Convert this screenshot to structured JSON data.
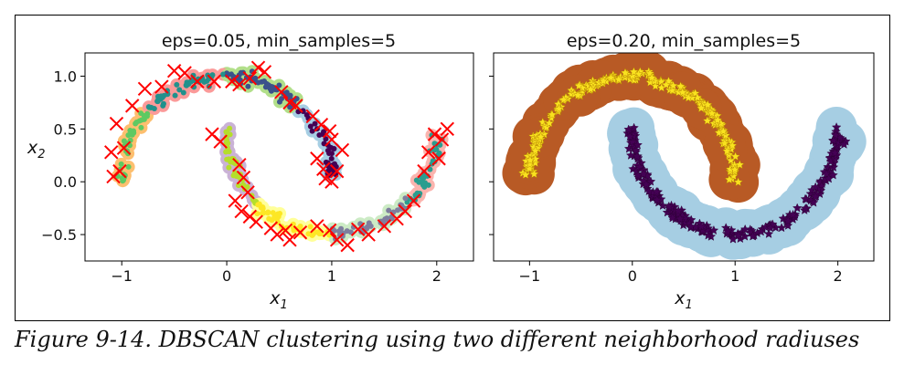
{
  "figure": {
    "caption": "Figure 9-14. DBSCAN clustering using two different neighborhood radiuses"
  },
  "chart_data": [
    {
      "type": "scatter",
      "title": "eps=0.05, min_samples=5",
      "xlabel_base": "x",
      "xlabel_sub": "1",
      "ylabel_base": "x",
      "ylabel_sub": "2",
      "xlim": [
        -1.35,
        2.35
      ],
      "ylim": [
        -0.75,
        1.22
      ],
      "xticks": [
        -1,
        0,
        1,
        2
      ],
      "xtick_labels": [
        "−1",
        "0",
        "1",
        "2"
      ],
      "yticks": [
        1.0,
        0.5,
        0.0,
        -0.5
      ],
      "ytick_labels": [
        "1.0",
        "0.5",
        "0.0",
        "−0.5"
      ],
      "cluster_colors": [
        "#440154",
        "#3b528b",
        "#21918c",
        "#5ec962",
        "#b5de2b",
        "#fde725",
        "#7e7e9e",
        "#2a9d8f"
      ],
      "halo_colors": [
        "#a6cee3",
        "#b2df8a",
        "#fb9a99",
        "#fdbf6f",
        "#cab2d6",
        "#ffff99",
        "#ccebc5",
        "#fbb4ae"
      ],
      "anomaly_color": "#ff0000",
      "anomaly_marker": "x",
      "anomalies": [
        [
          -1.08,
          0.05
        ],
        [
          -1.02,
          0.1
        ],
        [
          -1.1,
          0.28
        ],
        [
          -0.98,
          0.32
        ],
        [
          -1.05,
          0.55
        ],
        [
          -0.9,
          0.72
        ],
        [
          -0.78,
          0.88
        ],
        [
          -0.62,
          0.9
        ],
        [
          -0.5,
          1.05
        ],
        [
          -0.4,
          1.03
        ],
        [
          -0.28,
          0.95
        ],
        [
          -0.12,
          0.95
        ],
        [
          0.05,
          0.95
        ],
        [
          0.12,
          0.92
        ],
        [
          0.22,
          0.98
        ],
        [
          0.3,
          1.08
        ],
        [
          0.36,
          1.04
        ],
        [
          0.52,
          0.85
        ],
        [
          0.6,
          0.75
        ],
        [
          0.66,
          0.72
        ],
        [
          0.82,
          0.62
        ],
        [
          0.9,
          0.54
        ],
        [
          0.98,
          0.48
        ],
        [
          1.0,
          0.4
        ],
        [
          0.86,
          0.22
        ],
        [
          0.92,
          0.12
        ],
        [
          0.94,
          0.03
        ],
        [
          1.0,
          0.0
        ],
        [
          1.1,
          0.3
        ],
        [
          1.05,
          0.1
        ],
        [
          -0.14,
          0.45
        ],
        [
          -0.06,
          0.38
        ],
        [
          0.12,
          0.16
        ],
        [
          0.16,
          0.04
        ],
        [
          0.2,
          -0.1
        ],
        [
          0.08,
          -0.18
        ],
        [
          0.14,
          -0.28
        ],
        [
          0.22,
          -0.33
        ],
        [
          0.28,
          -0.38
        ],
        [
          0.42,
          -0.44
        ],
        [
          0.48,
          -0.5
        ],
        [
          0.56,
          -0.46
        ],
        [
          0.6,
          -0.55
        ],
        [
          0.7,
          -0.48
        ],
        [
          0.86,
          -0.42
        ],
        [
          0.98,
          -0.46
        ],
        [
          1.05,
          -0.55
        ],
        [
          1.15,
          -0.6
        ],
        [
          1.25,
          -0.45
        ],
        [
          1.35,
          -0.5
        ],
        [
          1.5,
          -0.42
        ],
        [
          1.62,
          -0.35
        ],
        [
          1.7,
          -0.28
        ],
        [
          1.78,
          -0.18
        ],
        [
          1.92,
          0.28
        ],
        [
          2.05,
          0.4
        ],
        [
          2.1,
          0.5
        ],
        [
          2.02,
          0.22
        ],
        [
          1.88,
          0.1
        ],
        [
          1.98,
          0.45
        ]
      ]
    },
    {
      "type": "scatter",
      "title": "eps=0.20, min_samples=5",
      "xlabel_base": "x",
      "xlabel_sub": "1",
      "xlim": [
        -1.35,
        2.35
      ],
      "ylim": [
        -0.75,
        1.22
      ],
      "xticks": [
        -1,
        0,
        1,
        2
      ],
      "xtick_labels": [
        "−1",
        "0",
        "1",
        "2"
      ],
      "marker": "star",
      "series": [
        {
          "halo": "#b85a25",
          "color": "#f9e21f",
          "stroke": "#b07a00"
        },
        {
          "halo": "#a6cee3",
          "color": "#440154",
          "stroke": "#2b0033"
        }
      ]
    }
  ]
}
